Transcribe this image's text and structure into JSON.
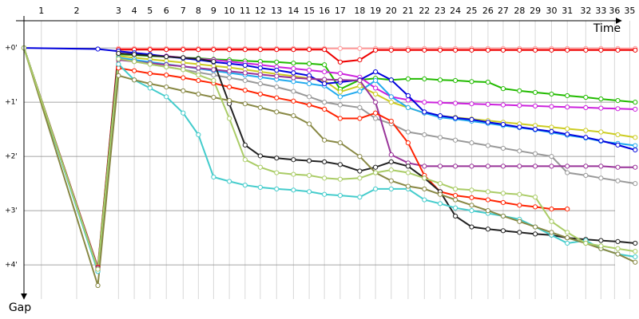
{
  "chart_data": {
    "type": "line",
    "x_label": "Time",
    "y_label": "Gap",
    "xlim": [
      0,
      11.32
    ],
    "ylim": [
      -0.59,
      4.63
    ],
    "xticks": [
      {
        "value": 0.32,
        "label": "1"
      },
      {
        "value": 0.97,
        "label": "2"
      },
      {
        "value": 1.74,
        "label": "3"
      },
      {
        "value": 2.03,
        "label": "4"
      },
      {
        "value": 2.32,
        "label": "5"
      },
      {
        "value": 2.62,
        "label": "6"
      },
      {
        "value": 2.93,
        "label": "7"
      },
      {
        "value": 3.21,
        "label": "8"
      },
      {
        "value": 3.49,
        "label": "9"
      },
      {
        "value": 3.78,
        "label": "10"
      },
      {
        "value": 4.07,
        "label": "11"
      },
      {
        "value": 4.35,
        "label": "12"
      },
      {
        "value": 4.65,
        "label": "13"
      },
      {
        "value": 4.96,
        "label": "14"
      },
      {
        "value": 5.25,
        "label": "15"
      },
      {
        "value": 5.53,
        "label": "16"
      },
      {
        "value": 5.82,
        "label": "17"
      },
      {
        "value": 6.18,
        "label": "18"
      },
      {
        "value": 6.47,
        "label": "19"
      },
      {
        "value": 6.76,
        "label": "20"
      },
      {
        "value": 7.07,
        "label": "21"
      },
      {
        "value": 7.37,
        "label": "22"
      },
      {
        "value": 7.66,
        "label": "23"
      },
      {
        "value": 7.94,
        "label": "24"
      },
      {
        "value": 8.24,
        "label": "25"
      },
      {
        "value": 8.54,
        "label": "26"
      },
      {
        "value": 8.82,
        "label": "27"
      },
      {
        "value": 9.12,
        "label": "28"
      },
      {
        "value": 9.41,
        "label": "29"
      },
      {
        "value": 9.71,
        "label": "30"
      },
      {
        "value": 10.0,
        "label": "31"
      },
      {
        "value": 10.34,
        "label": "32"
      },
      {
        "value": 10.62,
        "label": "33"
      },
      {
        "value": 10.87,
        "label": "36"
      },
      {
        "value": 11.15,
        "label": "35"
      }
    ],
    "yticks": [
      {
        "value": 0,
        "label": "+0'"
      },
      {
        "value": 1,
        "label": "+1'"
      },
      {
        "value": 2,
        "label": "+2'"
      },
      {
        "value": 3,
        "label": "+3'"
      },
      {
        "value": 4,
        "label": "+4'"
      }
    ],
    "grid": true,
    "x": [
      0,
      1.36,
      1.74,
      2.03,
      2.32,
      2.62,
      2.93,
      3.21,
      3.49,
      3.78,
      4.07,
      4.35,
      4.65,
      4.96,
      5.25,
      5.53,
      5.82,
      6.18,
      6.47,
      6.76,
      7.07,
      7.37,
      7.66,
      7.94,
      8.24,
      8.54,
      8.82,
      9.12,
      9.41,
      9.71,
      10.0,
      10.34,
      10.62,
      10.93,
      11.25
    ],
    "series": [
      {
        "color": "#ff9999",
        "values": [
          0,
          4.08,
          0.01,
          0.01,
          0.01,
          0.01,
          0.01,
          0.01,
          0.01,
          0.01,
          0.01,
          0.01,
          0.01,
          0.01,
          0.01,
          0.01,
          0.01,
          0.01,
          0.01,
          0.01,
          0.01,
          0.01,
          0.01,
          0.01,
          0.01,
          0.01,
          0.01,
          0.01,
          0.01,
          0.01,
          0.01,
          0.01,
          0.01,
          0.01,
          0.01
        ]
      },
      {
        "color": "#ee0000",
        "values": [
          0,
          4.04,
          0.03,
          0.03,
          0.03,
          0.03,
          0.03,
          0.03,
          0.03,
          0.03,
          0.03,
          0.03,
          0.03,
          0.03,
          0.03,
          0.03,
          0.26,
          0.22,
          0.04,
          0.04,
          0.04,
          0.04,
          0.04,
          0.04,
          0.04,
          0.04,
          0.04,
          0.04,
          0.04,
          0.04,
          0.04,
          0.04,
          0.04,
          0.04,
          0.04
        ]
      },
      {
        "color": "#22bb00",
        "values": [
          0,
          4.06,
          0.12,
          0.13,
          0.15,
          0.16,
          0.18,
          0.19,
          0.21,
          0.22,
          0.24,
          0.25,
          0.26,
          0.28,
          0.29,
          0.31,
          0.76,
          0.59,
          0.56,
          0.59,
          0.57,
          0.57,
          0.59,
          0.6,
          0.62,
          0.63,
          0.75,
          0.79,
          0.82,
          0.85,
          0.88,
          0.91,
          0.94,
          0.97,
          1.0
        ]
      },
      {
        "color": "#cc22dd",
        "values": [
          0,
          4.1,
          0.1,
          0.12,
          0.13,
          0.15,
          0.18,
          0.2,
          0.22,
          0.25,
          0.28,
          0.31,
          0.35,
          0.38,
          0.41,
          0.44,
          0.47,
          0.54,
          0.74,
          0.9,
          0.96,
          1.0,
          1.01,
          1.02,
          1.03,
          1.04,
          1.05,
          1.06,
          1.07,
          1.08,
          1.09,
          1.1,
          1.11,
          1.12,
          1.13
        ]
      },
      {
        "color": "#cccc22",
        "values": [
          0,
          4.08,
          0.15,
          0.18,
          0.21,
          0.24,
          0.27,
          0.3,
          0.33,
          0.36,
          0.4,
          0.44,
          0.48,
          0.52,
          0.56,
          0.6,
          0.81,
          0.7,
          0.85,
          1.0,
          1.1,
          1.2,
          1.25,
          1.28,
          1.31,
          1.34,
          1.37,
          1.4,
          1.43,
          1.46,
          1.49,
          1.52,
          1.55,
          1.6,
          1.65
        ]
      },
      {
        "color": "#22aaee",
        "values": [
          0,
          4.12,
          0.18,
          0.22,
          0.26,
          0.3,
          0.34,
          0.38,
          0.42,
          0.46,
          0.5,
          0.54,
          0.58,
          0.62,
          0.66,
          0.7,
          0.9,
          0.8,
          0.6,
          0.9,
          1.1,
          1.2,
          1.28,
          1.31,
          1.35,
          1.39,
          1.43,
          1.47,
          1.51,
          1.56,
          1.61,
          1.66,
          1.72,
          1.76,
          1.8
        ]
      },
      {
        "color": "#0000dd",
        "values": [
          0,
          0.02,
          0.06,
          0.09,
          0.12,
          0.16,
          0.19,
          0.22,
          0.26,
          0.29,
          0.32,
          0.37,
          0.41,
          0.46,
          0.51,
          0.66,
          0.63,
          0.59,
          0.44,
          0.59,
          0.88,
          1.18,
          1.25,
          1.29,
          1.32,
          1.37,
          1.41,
          1.46,
          1.5,
          1.54,
          1.59,
          1.65,
          1.71,
          1.79,
          1.88
        ]
      },
      {
        "color": "#999999",
        "values": [
          0,
          4.1,
          0.2,
          0.25,
          0.3,
          0.35,
          0.4,
          0.45,
          0.5,
          0.55,
          0.6,
          0.66,
          0.72,
          0.8,
          0.9,
          1.0,
          1.05,
          1.1,
          1.3,
          1.4,
          1.55,
          1.6,
          1.65,
          1.7,
          1.75,
          1.8,
          1.85,
          1.9,
          1.95,
          2.0,
          2.3,
          2.35,
          2.4,
          2.45,
          2.5
        ]
      },
      {
        "color": "#993399",
        "values": [
          0,
          4.06,
          0.22,
          0.25,
          0.28,
          0.31,
          0.34,
          0.37,
          0.4,
          0.43,
          0.46,
          0.49,
          0.52,
          0.55,
          0.57,
          0.58,
          0.59,
          0.6,
          1.0,
          1.97,
          2.12,
          2.18,
          2.18,
          2.18,
          2.18,
          2.18,
          2.18,
          2.18,
          2.18,
          2.18,
          2.18,
          2.18,
          2.18,
          2.2,
          2.2
        ]
      },
      {
        "color": "#ff2200",
        "values": [
          0,
          4.1,
          0.37,
          0.42,
          0.47,
          0.5,
          0.55,
          0.6,
          0.65,
          0.72,
          0.78,
          0.85,
          0.92,
          0.98,
          1.05,
          1.13,
          1.3,
          1.3,
          1.2,
          1.35,
          1.75,
          2.35,
          2.65,
          2.72,
          2.76,
          2.8,
          2.85,
          2.9,
          2.93,
          2.97,
          2.97,
          null,
          null,
          null,
          null
        ]
      },
      {
        "color": "#222222",
        "values": [
          0,
          4.08,
          0.1,
          0.12,
          0.14,
          0.16,
          0.18,
          0.2,
          0.25,
          1.03,
          1.79,
          1.99,
          2.03,
          2.06,
          2.08,
          2.1,
          2.15,
          2.27,
          2.2,
          2.1,
          2.18,
          2.4,
          2.65,
          3.1,
          3.3,
          3.34,
          3.37,
          3.4,
          3.43,
          3.45,
          3.5,
          3.53,
          3.55,
          3.57,
          3.6
        ]
      },
      {
        "color": "#44cccc",
        "values": [
          0,
          4.12,
          0.3,
          0.59,
          0.74,
          0.9,
          1.2,
          1.6,
          2.38,
          2.46,
          2.53,
          2.57,
          2.6,
          2.62,
          2.65,
          2.7,
          2.72,
          2.75,
          2.6,
          2.6,
          2.6,
          2.8,
          2.87,
          2.95,
          3.0,
          3.05,
          3.1,
          3.16,
          3.3,
          3.45,
          3.6,
          3.55,
          3.7,
          3.8,
          3.85
        ]
      },
      {
        "color": "#888844",
        "values": [
          0,
          4.38,
          0.51,
          0.59,
          0.66,
          0.72,
          0.79,
          0.85,
          0.91,
          0.97,
          1.03,
          1.1,
          1.18,
          1.25,
          1.4,
          1.7,
          1.75,
          2.0,
          2.3,
          2.45,
          2.55,
          2.6,
          2.7,
          2.8,
          2.9,
          3.0,
          3.1,
          3.2,
          3.3,
          3.4,
          3.5,
          3.6,
          3.7,
          3.8,
          3.95
        ]
      },
      {
        "color": "#aacc66",
        "values": [
          0,
          4.08,
          0.2,
          0.25,
          0.3,
          0.35,
          0.4,
          0.5,
          0.6,
          1.3,
          2.06,
          2.2,
          2.3,
          2.33,
          2.35,
          2.4,
          2.42,
          2.4,
          2.3,
          2.25,
          2.3,
          2.4,
          2.5,
          2.6,
          2.62,
          2.65,
          2.68,
          2.7,
          2.75,
          3.2,
          3.4,
          3.6,
          3.65,
          3.7,
          3.75
        ]
      }
    ]
  }
}
